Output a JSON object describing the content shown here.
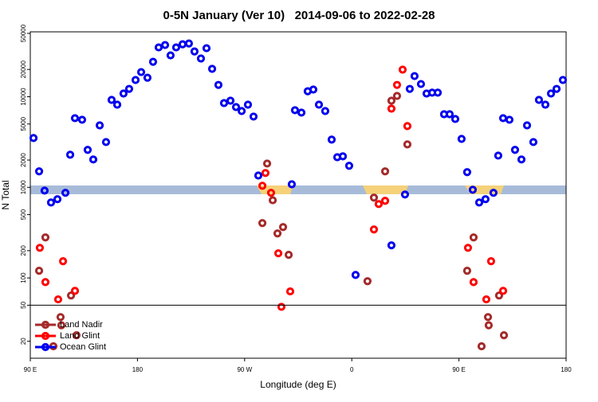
{
  "chart_data": {
    "type": "scatter",
    "title": "0-5N January (Ver 10)   2014-09-06 to 2022-02-28",
    "x_label": "Longitude (deg E)",
    "y_label": "N Total",
    "xlim": [
      90,
      540
    ],
    "xticks": [
      {
        "value": 90,
        "label": "90 E"
      },
      {
        "value": 180,
        "label": "180"
      },
      {
        "value": 270,
        "label": "90 W"
      },
      {
        "value": 360,
        "label": "0"
      },
      {
        "value": 450,
        "label": "90 E"
      },
      {
        "value": 540,
        "label": "180"
      }
    ],
    "ylim": [
      13,
      52000
    ],
    "log_y": true,
    "yticks": [
      20,
      50,
      100,
      200,
      500,
      1000,
      2000,
      5000,
      10000,
      20000,
      50000
    ],
    "reference_line": 50,
    "legend": "bottom-left",
    "series": [
      {
        "name": "Land Nadir",
        "color": "#a52a2a",
        "x": [
          97.4,
          102.7,
          109.4,
          115.4,
          116.1,
          124.2,
          128.8,
          284.9,
          288.9,
          293.6,
          297.6,
          302.3,
          307,
          373.2,
          378.6,
          388,
          393.3,
          398,
          406.7,
          456.9,
          462.3,
          469,
          474.4,
          475,
          483.7,
          487.8
        ],
        "values": [
          120,
          280,
          17.6,
          37,
          30,
          64,
          23.3,
          403,
          1830,
          720,
          310,
          364,
          180,
          92,
          770,
          1500,
          9040,
          10200,
          2980,
          120,
          280,
          17.6,
          37,
          30,
          64,
          23.3
        ]
      },
      {
        "name": "Land Glint",
        "color": "#ff0000",
        "x": [
          98,
          102.7,
          113.4,
          117.5,
          127.5,
          284.9,
          287.5,
          292.2,
          298.3,
          300.9,
          308.3,
          378.6,
          382.6,
          388,
          393.3,
          398,
          402.7,
          406.7,
          457.6,
          462.3,
          473,
          477,
          487.1
        ],
        "values": [
          215,
          90,
          58,
          153,
          72,
          1040,
          1440,
          870,
          187,
          48,
          71,
          343,
          654,
          710,
          7380,
          13500,
          19900,
          4740,
          215,
          90,
          58,
          153,
          72
        ]
      },
      {
        "name": "Ocean Glint",
        "color": "#0000ee",
        "x": [
          92.7,
          97.4,
          102,
          107.4,
          112.8,
          119.5,
          123.5,
          127.5,
          133.5,
          138.2,
          142.9,
          148.3,
          153.6,
          158.3,
          163,
          168.3,
          173,
          178.4,
          183.1,
          188.4,
          193.1,
          197.8,
          203.2,
          207.8,
          212.5,
          217.9,
          223.2,
          227.9,
          233.3,
          238,
          242.7,
          248,
          252.7,
          258.1,
          262.8,
          267.5,
          272.8,
          277.5,
          281.5,
          309.6,
          312.3,
          317.7,
          323,
          327.7,
          332.4,
          337.7,
          343.1,
          347.8,
          352.5,
          357.8,
          363.2,
          393.3,
          404.7,
          408.7,
          412.7,
          418.1,
          422.8,
          427.5,
          432.2,
          437.5,
          442.2,
          446.9,
          452.2,
          456.9,
          461.6,
          467,
          472.3,
          479,
          483,
          487.1,
          492.4,
          497.1,
          502.5,
          507.2,
          512.5,
          517.2,
          522.6,
          527.3,
          532,
          537.3
        ],
        "values": [
          3500,
          1500,
          920,
          680,
          740,
          870,
          2290,
          5800,
          5570,
          2590,
          2030,
          4830,
          3160,
          9220,
          8170,
          10840,
          12200,
          15300,
          18700,
          16200,
          24300,
          35000,
          37200,
          28600,
          35000,
          37900,
          38700,
          31600,
          26400,
          34300,
          20300,
          13500,
          8510,
          9040,
          7690,
          6950,
          8170,
          6040,
          1350,
          1080,
          7100,
          6680,
          11500,
          12000,
          8170,
          6950,
          3360,
          2150,
          2200,
          1730,
          108,
          229,
          834,
          12200,
          16900,
          13800,
          10840,
          11100,
          11100,
          6410,
          6410,
          5680,
          3420,
          1470,
          940,
          680,
          740,
          870,
          2240,
          5800,
          5570,
          2590,
          2030,
          4830,
          3160,
          9220,
          8170,
          10840,
          12200,
          15300
        ]
      }
    ]
  }
}
